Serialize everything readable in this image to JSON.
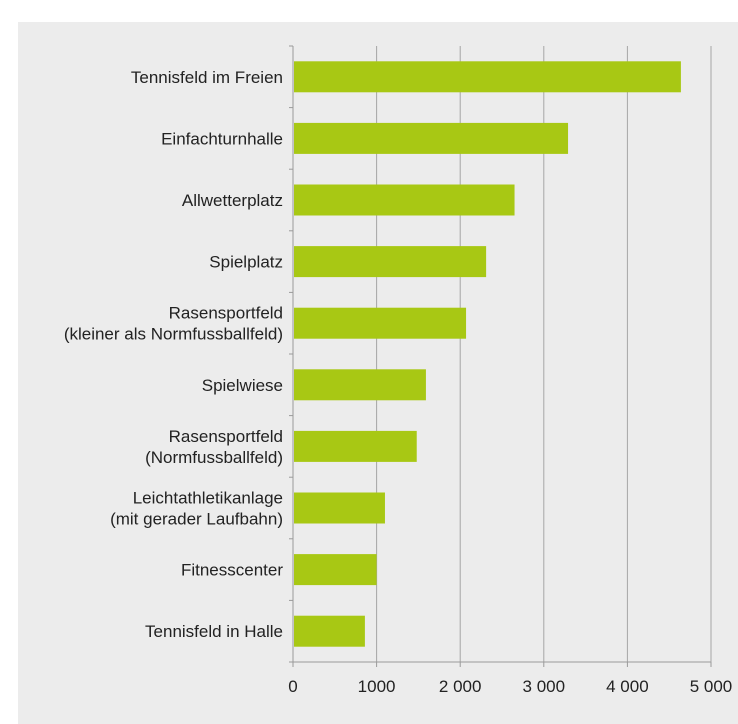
{
  "chart_data": {
    "type": "bar",
    "orientation": "horizontal",
    "title": "",
    "categories": [
      [
        "Tennisfeld im Freien"
      ],
      [
        "Einfachturnhalle"
      ],
      [
        "Allwetterplatz"
      ],
      [
        "Spielplatz"
      ],
      [
        "Rasensportfeld",
        "(kleiner als Normfussballfeld)"
      ],
      [
        "Spielwiese"
      ],
      [
        "Rasensportfeld",
        "(Normfussballfeld)"
      ],
      [
        "Leichtathletikanlage",
        "(mit gerader Laufbahn)"
      ],
      [
        "Fitnesscenter"
      ],
      [
        "Tennisfeld in Halle"
      ]
    ],
    "values": [
      4640,
      3290,
      2650,
      2310,
      2070,
      1590,
      1480,
      1100,
      1000,
      860
    ],
    "xlim": [
      0,
      5000
    ],
    "xticks": [
      0,
      1000,
      2000,
      3000,
      4000,
      5000
    ],
    "xtick_labels": [
      "0",
      "1000",
      "2 000",
      "3 000",
      "4 000",
      "5 000"
    ],
    "xlabel": "",
    "ylabel": "",
    "grid": "vertical",
    "colors": {
      "bar": "#a8c814",
      "background": "#ececec",
      "grid": "#a6a6a6",
      "axis": "#9a9a9a",
      "text": "#222222"
    }
  }
}
